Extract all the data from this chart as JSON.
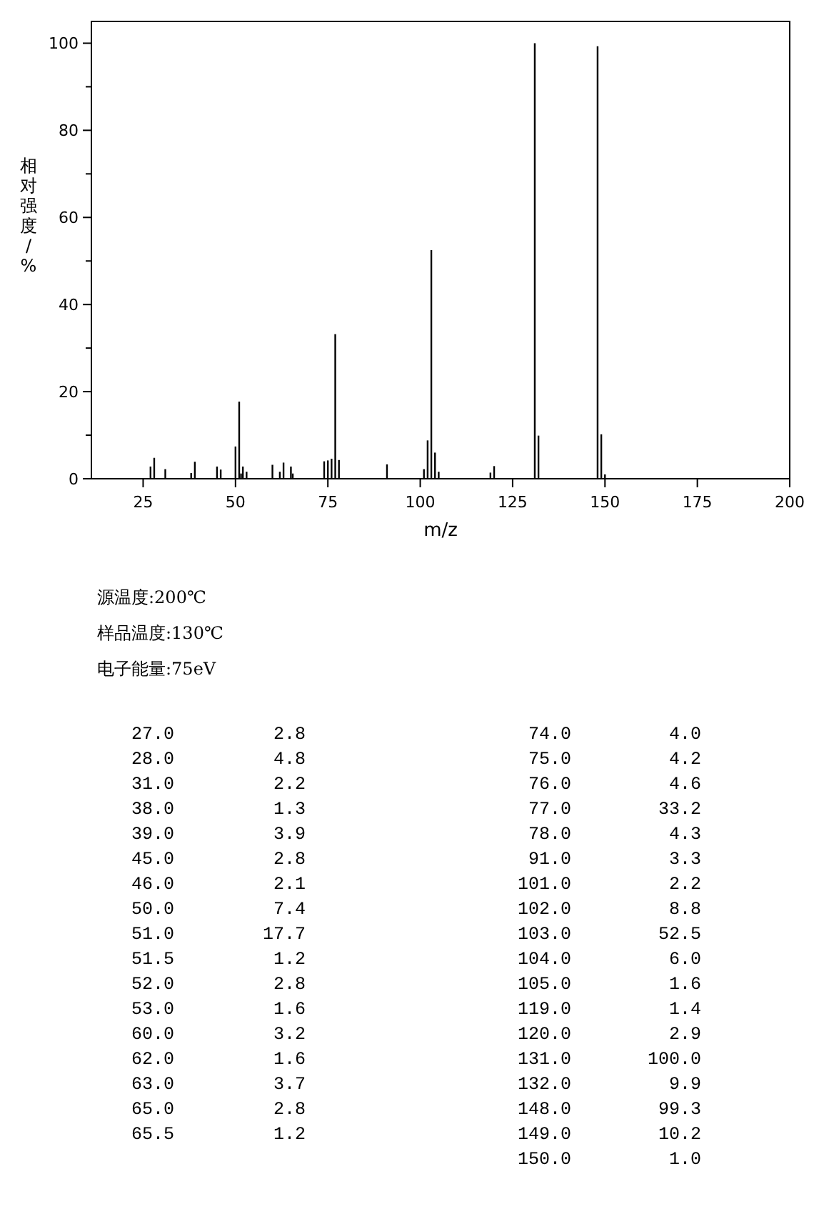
{
  "chart_data": [
    {
      "type": "bar",
      "xlabel": "m/z",
      "ylabel": "相对强度/%",
      "color": "#000000",
      "x": [
        27,
        28,
        31,
        38,
        39,
        45,
        46,
        50,
        51,
        51.5,
        52,
        53,
        60,
        62,
        63,
        65,
        65.5,
        74,
        75,
        76,
        77,
        78,
        91,
        101,
        102,
        103,
        104,
        105,
        119,
        120,
        131,
        132,
        148,
        149,
        150
      ],
      "values": [
        2.8,
        4.8,
        2.2,
        1.3,
        3.9,
        2.8,
        2.1,
        7.4,
        17.7,
        1.2,
        2.8,
        1.6,
        3.2,
        1.6,
        3.7,
        2.8,
        1.2,
        4.0,
        4.2,
        4.6,
        33.2,
        4.3,
        3.3,
        2.2,
        8.8,
        52.5,
        6.0,
        1.6,
        1.4,
        2.9,
        100.0,
        9.9,
        99.3,
        10.2,
        1.0
      ],
      "xlim": [
        11,
        200
      ],
      "xticks": [
        25,
        50,
        75,
        100,
        125,
        150,
        175,
        200
      ],
      "ylim": [
        0,
        105
      ],
      "yticks": [
        0,
        {
          "value": 10,
          "label": null
        },
        20,
        {
          "value": 30,
          "label": null
        },
        40,
        {
          "value": 50,
          "label": null
        },
        60,
        {
          "value": 70,
          "label": null
        },
        80,
        {
          "value": 90,
          "label": null
        },
        100
      ],
      "grid": false,
      "annotations": [
        "源温度:200℃",
        "样品温度:130℃",
        "电子能量:75eV"
      ]
    },
    {
      "type": "other",
      "annotations": [
        "27.0",
        "2.8",
        "28.0",
        "4.8",
        "31.0",
        "2.2",
        "38.0",
        "1.3",
        "39.0",
        "3.9",
        "45.0",
        "2.8",
        "46.0",
        "2.1",
        "50.0",
        "7.4",
        "51.0",
        "17.7",
        "51.5",
        "1.2",
        "52.0",
        "2.8",
        "53.0",
        "1.6",
        "60.0",
        "3.2",
        "62.0",
        "1.6",
        "63.0",
        "3.7",
        "65.0",
        "2.8",
        "65.5",
        "1.2",
        "74.0",
        "4.0",
        "75.0",
        "4.2",
        "76.0",
        "4.6",
        "77.0",
        "33.2",
        "78.0",
        "4.3",
        "91.0",
        "3.3",
        "101.0",
        "2.2",
        "102.0",
        "8.8",
        "103.0",
        "52.5",
        "104.0",
        "6.0",
        "105.0",
        "1.6",
        "119.0",
        "1.4",
        "120.0",
        "2.9",
        "131.0",
        "100.0",
        "132.0",
        "9.9",
        "148.0",
        "99.3",
        "149.0",
        "10.2",
        "150.0",
        "1.0"
      ]
    }
  ]
}
